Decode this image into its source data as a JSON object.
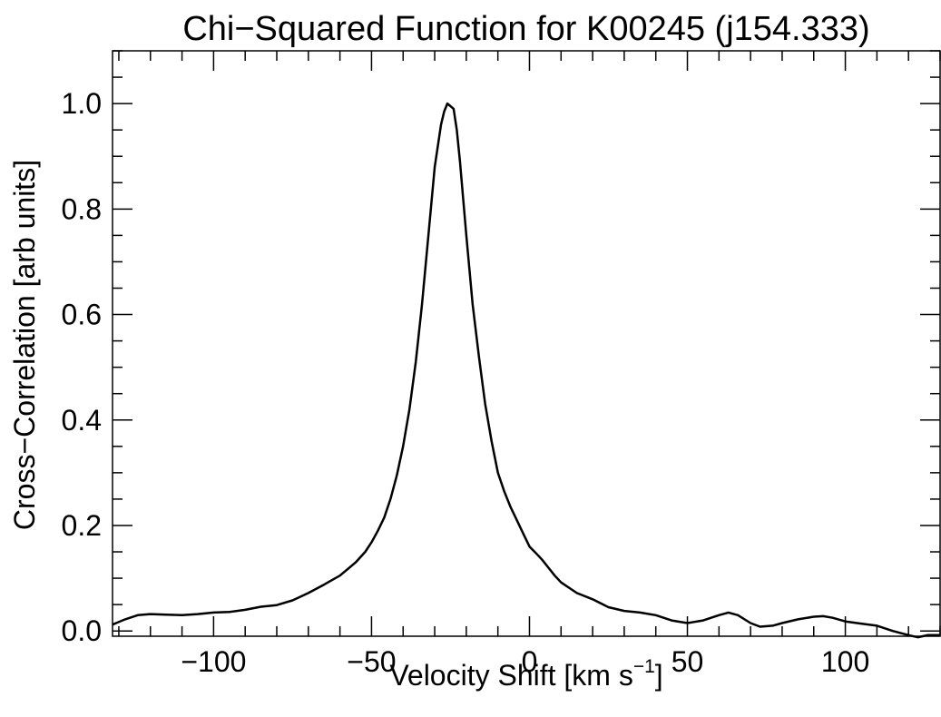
{
  "chart_data": {
    "type": "line",
    "title": "Chi−Squared Function for K00245 (j154.333)",
    "xlabel": "Velocity Shift [km s",
    "xlabel_superscript": "−1",
    "xlabel_suffix": "]",
    "ylabel": "Cross−Correlation [arb units]",
    "xlim": [
      -132,
      130
    ],
    "ylim": [
      -0.01,
      1.1
    ],
    "x_major_ticks": [
      -100,
      -50,
      0,
      50,
      100
    ],
    "x_tick_labels": [
      "−100",
      "−50",
      "0",
      "50",
      "100"
    ],
    "x_minor_step": 10,
    "y_major_ticks": [
      0.0,
      0.2,
      0.4,
      0.6,
      0.8,
      1.0
    ],
    "y_tick_labels": [
      "0.0",
      "0.2",
      "0.4",
      "0.6",
      "0.8",
      "1.0"
    ],
    "y_minor_step": 0.05,
    "grid": false,
    "line_color": "#000000",
    "series": [
      {
        "x": [
          -132,
          -128,
          -124,
          -120,
          -115,
          -110,
          -105,
          -100,
          -95,
          -90,
          -85,
          -80,
          -75,
          -70,
          -65,
          -60,
          -55,
          -52,
          -50,
          -48,
          -46,
          -44,
          -42,
          -40,
          -38,
          -36,
          -34,
          -32,
          -30,
          -28,
          -27,
          -26,
          -25,
          -24,
          -23,
          -22,
          -21,
          -20,
          -18,
          -16,
          -14,
          -12,
          -10,
          -8,
          -6,
          -4,
          -2,
          0,
          2,
          4,
          6,
          8,
          10,
          15,
          20,
          25,
          30,
          35,
          40,
          45,
          50,
          55,
          60,
          63,
          66,
          70,
          73,
          77,
          80,
          85,
          90,
          93,
          96,
          100,
          105,
          110,
          115,
          120,
          123,
          126,
          130
        ],
        "y": [
          0.012,
          0.022,
          0.03,
          0.032,
          0.031,
          0.03,
          0.032,
          0.035,
          0.036,
          0.04,
          0.046,
          0.049,
          0.058,
          0.072,
          0.088,
          0.105,
          0.13,
          0.15,
          0.168,
          0.19,
          0.215,
          0.25,
          0.295,
          0.35,
          0.42,
          0.51,
          0.62,
          0.75,
          0.88,
          0.96,
          0.985,
          1.0,
          0.995,
          0.99,
          0.95,
          0.89,
          0.82,
          0.75,
          0.62,
          0.52,
          0.43,
          0.36,
          0.3,
          0.265,
          0.235,
          0.21,
          0.185,
          0.16,
          0.148,
          0.135,
          0.12,
          0.105,
          0.092,
          0.072,
          0.06,
          0.045,
          0.038,
          0.035,
          0.03,
          0.02,
          0.015,
          0.02,
          0.03,
          0.035,
          0.03,
          0.015,
          0.008,
          0.01,
          0.015,
          0.022,
          0.027,
          0.028,
          0.025,
          0.018,
          0.014,
          0.01,
          0.0,
          -0.008,
          -0.012,
          -0.008,
          -0.008
        ]
      }
    ]
  }
}
